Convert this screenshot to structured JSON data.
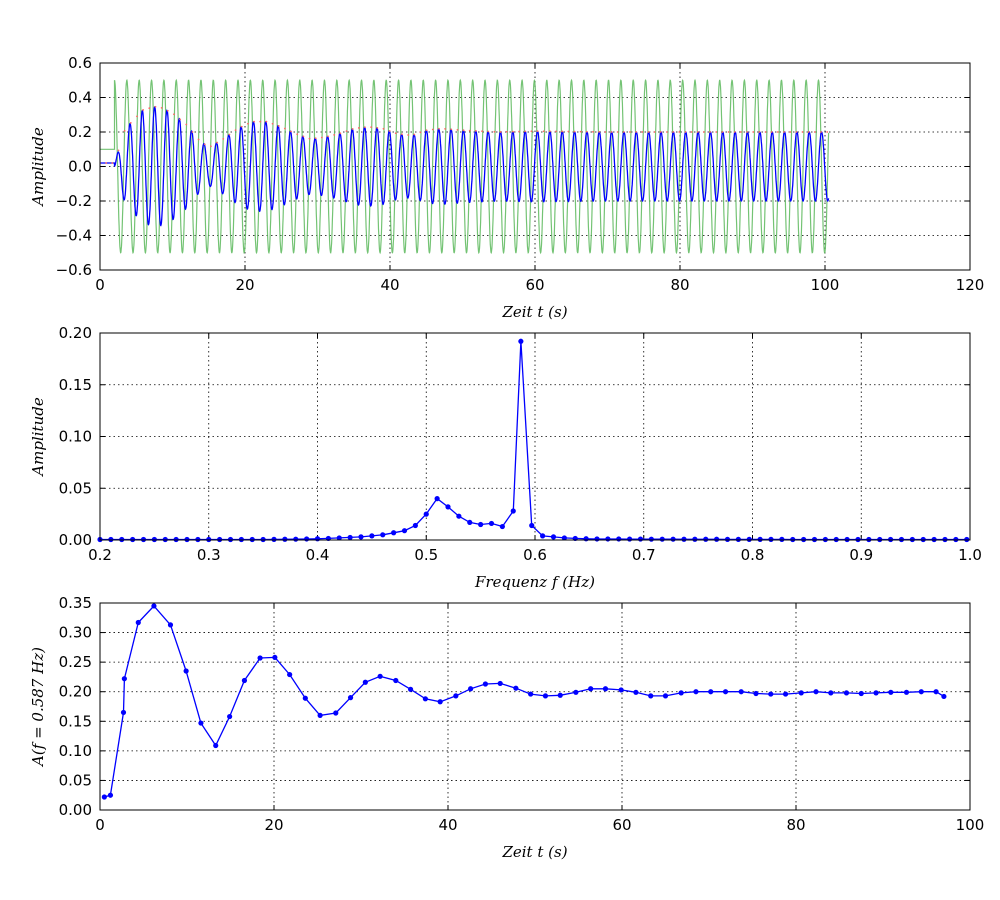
{
  "chart_data": [
    {
      "type": "line",
      "title": "",
      "xlabel": "Zeit t (s)",
      "ylabel": "Amplitude",
      "xlim": [
        0,
        120
      ],
      "ylim": [
        -0.6,
        0.6
      ],
      "xticks": [
        "0",
        "20",
        "40",
        "60",
        "80",
        "100",
        "120"
      ],
      "yticks": [
        "0.6",
        "0.4",
        "0.2",
        "0.0",
        "−0.2",
        "−0.4",
        "−0.6"
      ],
      "grid": true,
      "series": [
        {
          "color": "#5cb85c",
          "style": "line",
          "description_values": {
            "amplitude": 0.5,
            "frequency_hz": 0.587,
            "t_start": 2,
            "t_end": 100.5,
            "pre_value": 0.1
          }
        },
        {
          "color": "#0000ff",
          "style": "line",
          "envelope": {
            "t": [
              2,
              3.5,
              6,
              8,
              10,
              12,
              13.5,
              15,
              17,
              19,
              21,
              23,
              25,
              27,
              29,
              31,
              33,
              35,
              37,
              39,
              41,
              43,
              45,
              47,
              50,
              55,
              60,
              70,
              80,
              90,
              100.5
            ],
            "amp": [
              0.02,
              0.22,
              0.33,
              0.35,
              0.31,
              0.24,
              0.16,
              0.11,
              0.16,
              0.22,
              0.26,
              0.26,
              0.23,
              0.19,
              0.16,
              0.17,
              0.19,
              0.22,
              0.23,
              0.22,
              0.19,
              0.18,
              0.21,
              0.22,
              0.21,
              0.2,
              0.205,
              0.2,
              0.2,
              0.2,
              0.2
            ]
          }
        },
        {
          "color": "#ff6666",
          "style": "dots",
          "note_values": "envelope markers"
        }
      ]
    },
    {
      "type": "line",
      "title": "",
      "xlabel": "Frequenz f (Hz)",
      "ylabel": "Amplitude",
      "xlim": [
        0.2,
        1.0
      ],
      "ylim": [
        0,
        0.2
      ],
      "xticks": [
        "0.2",
        "0.3",
        "0.4",
        "0.5",
        "0.6",
        "0.7",
        "0.8",
        "0.9",
        "1.0"
      ],
      "yticks": [
        "0.20",
        "0.15",
        "0.10",
        "0.05",
        "0.00"
      ],
      "grid": true,
      "series": [
        {
          "color": "#0000ff",
          "markers": true,
          "x": [
            0.2,
            0.21,
            0.22,
            0.23,
            0.24,
            0.25,
            0.26,
            0.27,
            0.28,
            0.29,
            0.3,
            0.31,
            0.32,
            0.33,
            0.34,
            0.35,
            0.36,
            0.37,
            0.38,
            0.39,
            0.4,
            0.41,
            0.42,
            0.43,
            0.44,
            0.45,
            0.46,
            0.47,
            0.48,
            0.49,
            0.5,
            0.51,
            0.52,
            0.53,
            0.54,
            0.55,
            0.56,
            0.57,
            0.58,
            0.587,
            0.597,
            0.607,
            0.617,
            0.627,
            0.637,
            0.647,
            0.657,
            0.667,
            0.677,
            0.687,
            0.697,
            0.707,
            0.717,
            0.727,
            0.737,
            0.747,
            0.757,
            0.767,
            0.777,
            0.787,
            0.797,
            0.807,
            0.817,
            0.827,
            0.837,
            0.847,
            0.857,
            0.867,
            0.877,
            0.887,
            0.897,
            0.907,
            0.917,
            0.927,
            0.937,
            0.947,
            0.957,
            0.967,
            0.977,
            0.987,
            0.997
          ],
          "y": [
            0.0005,
            0.0005,
            0.0005,
            0.0005,
            0.0005,
            0.0005,
            0.0005,
            0.0005,
            0.0005,
            0.0005,
            0.0005,
            0.0005,
            0.0005,
            0.0005,
            0.0005,
            0.0005,
            0.0006,
            0.0007,
            0.0008,
            0.001,
            0.0012,
            0.0015,
            0.002,
            0.0025,
            0.003,
            0.004,
            0.005,
            0.007,
            0.009,
            0.014,
            0.025,
            0.04,
            0.032,
            0.023,
            0.017,
            0.015,
            0.016,
            0.013,
            0.028,
            0.192,
            0.014,
            0.004,
            0.003,
            0.002,
            0.0015,
            0.0012,
            0.001,
            0.001,
            0.001,
            0.0009,
            0.0009,
            0.0008,
            0.0008,
            0.0008,
            0.0007,
            0.0007,
            0.0007,
            0.0007,
            0.0006,
            0.0006,
            0.0006,
            0.0006,
            0.0006,
            0.0006,
            0.0005,
            0.0005,
            0.0005,
            0.0005,
            0.0005,
            0.0005,
            0.0005,
            0.0005,
            0.0005,
            0.0005,
            0.0005,
            0.0005,
            0.0005,
            0.0005,
            0.0005,
            0.0005,
            0.0005
          ]
        }
      ]
    },
    {
      "type": "line",
      "title": "",
      "xlabel": "Zeit t (s)",
      "ylabel": "A(f = 0.587 Hz)",
      "xlim": [
        0,
        100
      ],
      "ylim": [
        0,
        0.35
      ],
      "xticks": [
        "0",
        "20",
        "40",
        "60",
        "80",
        "100"
      ],
      "yticks": [
        "0.35",
        "0.30",
        "0.25",
        "0.20",
        "0.15",
        "0.10",
        "0.05",
        "0.00"
      ],
      "grid": true,
      "series": [
        {
          "color": "#0000ff",
          "markers": true,
          "x": [
            0.5,
            1.2,
            2.7,
            2.8,
            4.4,
            6.2,
            8.1,
            9.9,
            11.6,
            13.3,
            14.9,
            16.6,
            18.4,
            20.1,
            21.8,
            23.6,
            25.3,
            27.1,
            28.8,
            30.5,
            32.2,
            34.0,
            35.7,
            37.4,
            39.1,
            40.9,
            42.6,
            44.3,
            46.0,
            47.8,
            49.5,
            51.2,
            52.9,
            54.7,
            56.4,
            58.1,
            59.9,
            61.6,
            63.3,
            65.0,
            66.8,
            68.5,
            70.2,
            71.9,
            73.7,
            75.4,
            77.1,
            78.8,
            80.6,
            82.3,
            84.0,
            85.8,
            87.5,
            89.2,
            90.9,
            92.7,
            94.4,
            96.1,
            97.0
          ],
          "y": [
            0.022,
            0.025,
            0.165,
            0.222,
            0.317,
            0.345,
            0.313,
            0.235,
            0.147,
            0.109,
            0.158,
            0.219,
            0.257,
            0.258,
            0.229,
            0.189,
            0.16,
            0.164,
            0.19,
            0.216,
            0.226,
            0.219,
            0.204,
            0.188,
            0.183,
            0.193,
            0.205,
            0.213,
            0.214,
            0.206,
            0.196,
            0.193,
            0.194,
            0.199,
            0.205,
            0.205,
            0.203,
            0.199,
            0.193,
            0.193,
            0.198,
            0.2,
            0.2,
            0.2,
            0.2,
            0.197,
            0.196,
            0.196,
            0.198,
            0.2,
            0.198,
            0.198,
            0.197,
            0.198,
            0.199,
            0.199,
            0.2,
            0.2,
            0.192
          ]
        }
      ]
    }
  ]
}
